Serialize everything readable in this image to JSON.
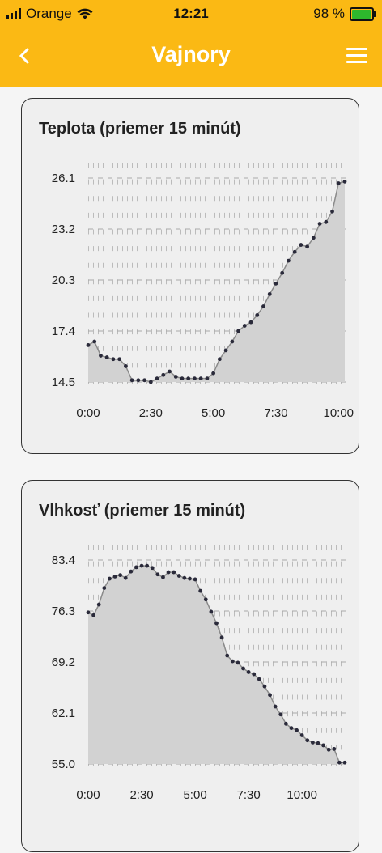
{
  "status_bar": {
    "carrier": "Orange",
    "time": "12:21",
    "battery": "98 %",
    "battery_level": 0.98
  },
  "nav": {
    "back_icon": "chevron-left-icon",
    "title": "Vajnory",
    "menu_icon": "hamburger-menu-icon"
  },
  "cards": [
    {
      "title": "Teplota (priemer 15 minút)",
      "chart_data": {
        "type": "area",
        "y_ticks": [
          "26.1",
          "23.2",
          "20.3",
          "17.4",
          "14.5"
        ],
        "x_ticks": [
          "0:00",
          "2:30",
          "5:00",
          "7:30",
          "10:00"
        ],
        "ylim": [
          14.5,
          26.1
        ],
        "x_unit_hours": true,
        "values": [
          16.6,
          16.8,
          16.0,
          15.9,
          15.8,
          15.8,
          15.4,
          14.6,
          14.6,
          14.6,
          14.5,
          14.7,
          14.9,
          15.1,
          14.8,
          14.7,
          14.7,
          14.7,
          14.7,
          14.7,
          15.0,
          15.8,
          16.3,
          16.8,
          17.4,
          17.7,
          17.9,
          18.3,
          18.8,
          19.5,
          20.1,
          20.7,
          21.4,
          21.9,
          22.3,
          22.2,
          22.7,
          23.5,
          23.6,
          24.2,
          25.8,
          25.9
        ]
      }
    },
    {
      "title": "Vlhkosť (priemer 15 minút)",
      "chart_data": {
        "type": "area",
        "y_ticks": [
          "83.4",
          "76.3",
          "69.2",
          "62.1",
          "55.0"
        ],
        "x_ticks": [
          "0:00",
          "2:30",
          "5:00",
          "7:30",
          "10:00"
        ],
        "ylim": [
          55.0,
          83.4
        ],
        "values": [
          76.1,
          75.7,
          77.2,
          79.5,
          80.8,
          81.1,
          81.3,
          80.9,
          81.8,
          82.4,
          82.6,
          82.6,
          82.3,
          81.4,
          81.0,
          81.7,
          81.7,
          81.2,
          80.9,
          80.8,
          80.7,
          79.1,
          77.9,
          76.2,
          74.6,
          72.6,
          70.1,
          69.3,
          69.1,
          68.3,
          67.8,
          67.5,
          66.8,
          65.8,
          64.6,
          63.0,
          61.9,
          60.6,
          60.0,
          59.7,
          59.0,
          58.3,
          58.0,
          57.9,
          57.6,
          57.0,
          57.1,
          55.2,
          55.2
        ]
      }
    }
  ]
}
